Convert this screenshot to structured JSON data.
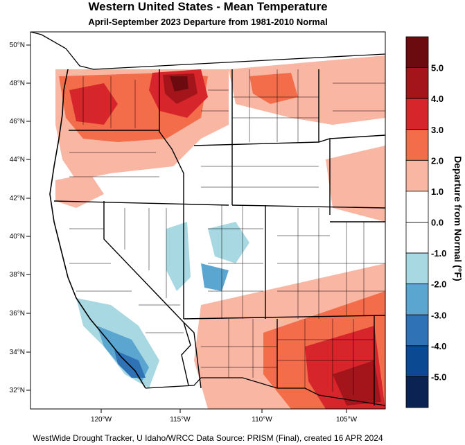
{
  "header": {
    "title": "Western United States - Mean Temperature",
    "subtitle": "April-September 2023  Departure from 1981-2010 Normal"
  },
  "footer": {
    "credit": "WestWide Drought Tracker, U Idaho/WRCC Data Source: PRISM (Final), created 16 APR 2024"
  },
  "map": {
    "lat_labels": [
      "50°N",
      "48°N",
      "46°N",
      "44°N",
      "42°N",
      "40°N",
      "38°N",
      "36°N",
      "34°N",
      "32°N"
    ],
    "lon_labels": [
      "120°W",
      "115°W",
      "110°W",
      "105°W"
    ]
  },
  "colorbar": {
    "title": "Departure from Normal (°F)",
    "levels": [
      {
        "label": "5.0",
        "color": "#6b0a0f"
      },
      {
        "label": "4.0",
        "color": "#a3151b"
      },
      {
        "label": "3.0",
        "color": "#d6262b"
      },
      {
        "label": "2.0",
        "color": "#f46d4b"
      },
      {
        "label": "1.0",
        "color": "#f9b6a2"
      },
      {
        "label": "0.0",
        "color": "#ffffff"
      },
      {
        "label": "-1.0",
        "color": "#ffffff"
      },
      {
        "label": "-2.0",
        "color": "#a8d8e2"
      },
      {
        "label": "-3.0",
        "color": "#5aa6d0"
      },
      {
        "label": "-4.0",
        "color": "#2f73b6"
      },
      {
        "label": "-5.0",
        "color": "#0b4a93"
      },
      {
        "label": "",
        "color": "#0a2352"
      }
    ]
  }
}
